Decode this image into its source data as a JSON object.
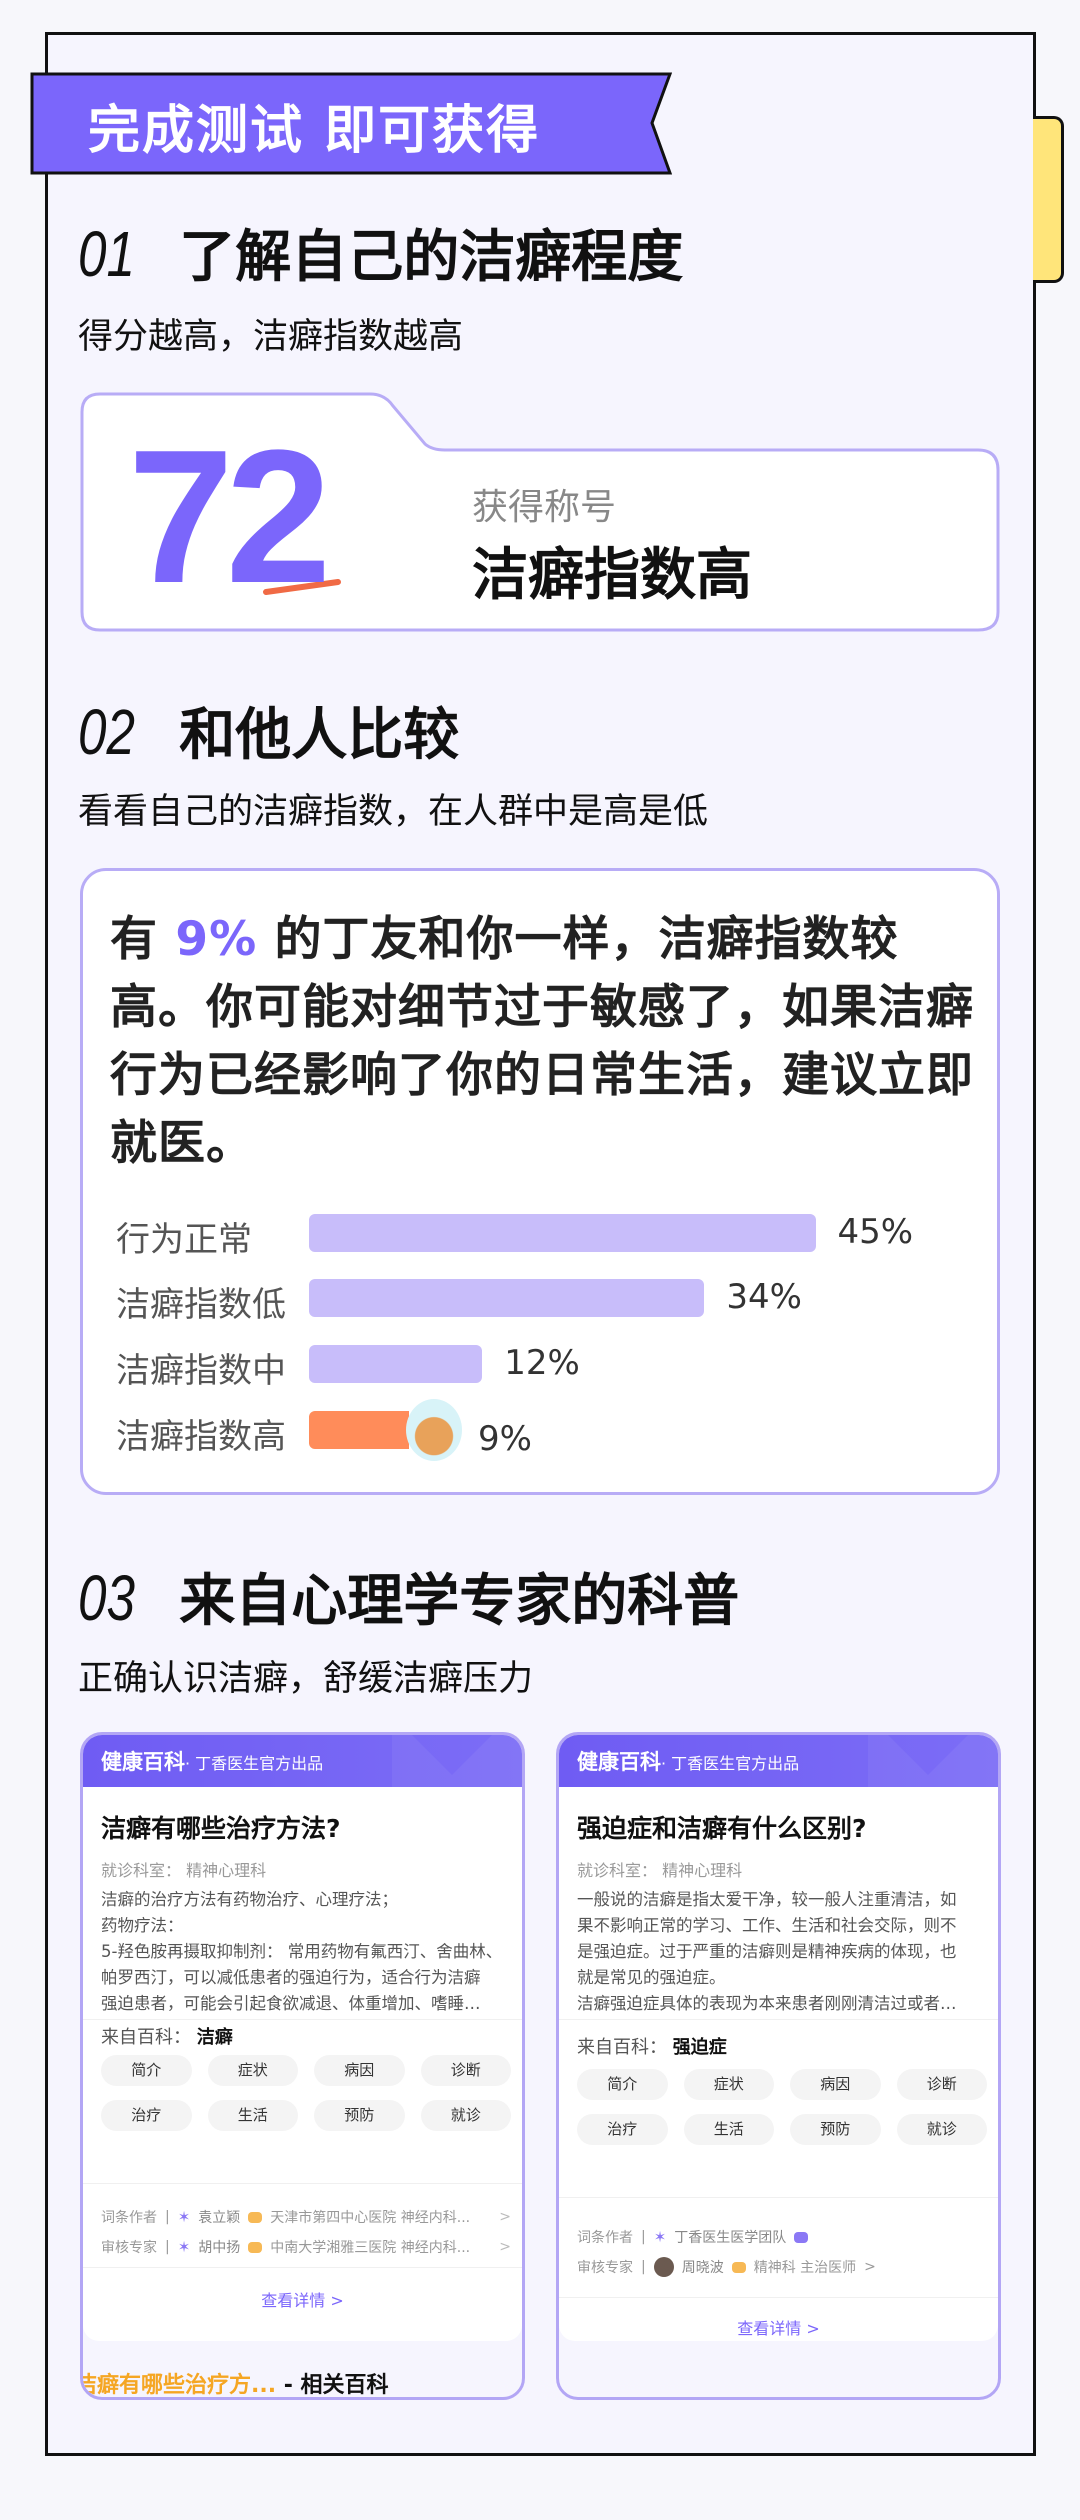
{
  "banner": {
    "text": "完成测试 即可获得",
    "color": "#7b66fb"
  },
  "section1": {
    "num": "01",
    "title": "了解自己的洁癖程度",
    "subtitle": "得分越高，洁癖指数越高",
    "score": "72",
    "title_label": "获得称号",
    "title_value": "洁癖指数高"
  },
  "section2": {
    "num": "02",
    "title": "和他人比较",
    "subtitle": "看看自己的洁癖指数，在人群中是高是低",
    "text_prefix": "有 ",
    "text_highlight": "9%",
    "text_suffix": " 的丁友和你一样，洁癖指数较高。你可能对细节过于敏感了，如果洁癖行为已经影响了你的日常生活，建议立即就医。"
  },
  "chart_data": {
    "type": "bar",
    "orientation": "horizontal",
    "categories": [
      "行为正常",
      "洁癖指数低",
      "洁癖指数中",
      "洁癖指数高"
    ],
    "values": [
      45,
      34,
      12,
      9
    ],
    "value_labels": [
      "45%",
      "34%",
      "12%",
      "9%"
    ],
    "highlight_index": 3,
    "colors": {
      "default": "#c8bdfa",
      "highlight": "#ff8c5a"
    },
    "highlight_marker": "cat-avatar-icon"
  },
  "section3": {
    "num": "03",
    "title": "来自心理学专家的科普",
    "subtitle": "正确认识洁癖，舒缓洁癖压力",
    "cards": [
      {
        "brand": "健康百科",
        "brand_sub": "· 丁香医生官方出品",
        "title": "洁癖有哪些治疗方法?",
        "dept": "就诊科室：  精神心理科",
        "body_lines": [
          "洁癖的治疗方法有药物治疗、心理疗法；",
          "药物疗法：",
          "5-羟色胺再摄取抑制剂： 常用药物有氟西汀、舍曲林、",
          "帕罗西汀，可以减低患者的强迫行为，适合行为洁癖",
          "强迫患者，可能会引起食欲减退、体重增加、嗜睡…"
        ],
        "from_label": "来自百科：",
        "from_value": "洁癖",
        "tags": [
          "简介",
          "症状",
          "病因",
          "诊断",
          "治疗",
          "生活",
          "预防",
          "就诊"
        ],
        "authors": [
          {
            "role": "词条作者",
            "name": "袁立颖",
            "org": "天津市第四中心医院 神经内科...",
            "icon": "butterfly-icon",
            "badge": "orange"
          },
          {
            "role": "审核专家",
            "name": "胡中扬",
            "org": "中南大学湘雅三医院 神经内科...",
            "icon": "butterfly-icon",
            "badge": "orange"
          }
        ],
        "more": "查看详情 >",
        "related_title": "洁癖有哪些治疗方...",
        "related_suffix": " - 相关百科"
      },
      {
        "brand": "健康百科",
        "brand_sub": "· 丁香医生官方出品",
        "title": "强迫症和洁癖有什么区别?",
        "dept": "就诊科室：  精神心理科",
        "body_lines": [
          "一般说的洁癖是指太爱干净，较一般人注重清洁，如",
          "果不影响正常的学习、工作、生活和社会交际，则不",
          "是强迫症。过于严重的洁癖则是精神疾病的体现，也",
          "就是常见的强迫症。",
          "洁癖强迫症具体的表现为本来患者刚刚清洁过或者…"
        ],
        "from_label": "来自百科：",
        "from_value": "强迫症",
        "tags": [
          "简介",
          "症状",
          "病因",
          "诊断",
          "治疗",
          "生活",
          "预防",
          "就诊"
        ],
        "authors": [
          {
            "role": "词条作者",
            "name": "丁香医生医学团队",
            "org": "",
            "icon": "butterfly-icon",
            "badge": "purple"
          },
          {
            "role": "审核专家",
            "name": "周晓波",
            "org": "精神科 主治医师",
            "icon": "avatar-icon",
            "badge": "orange"
          }
        ],
        "more": "查看详情 >"
      }
    ]
  }
}
